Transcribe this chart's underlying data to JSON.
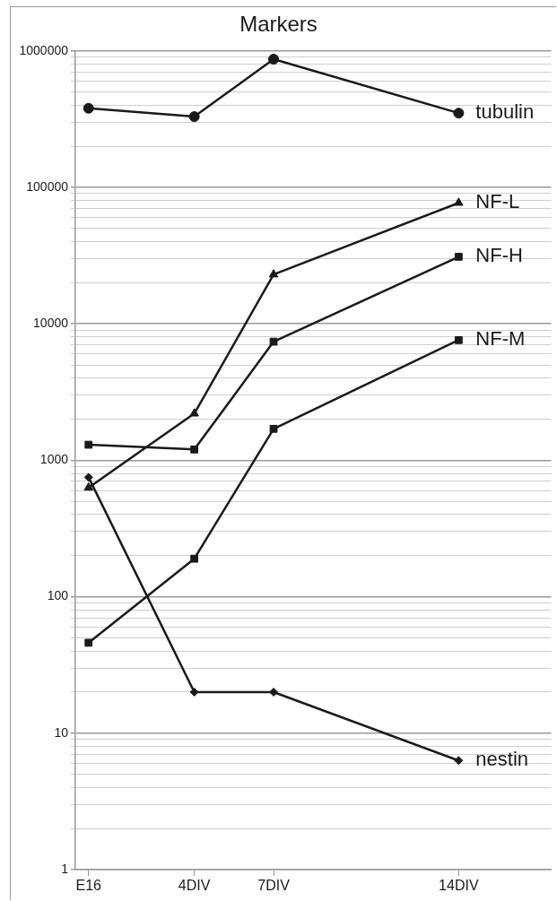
{
  "chart_data": {
    "type": "line",
    "title": "Markers",
    "log": "y",
    "grid": "y",
    "legend": false,
    "line_style": "solid",
    "x": [
      0,
      4,
      7,
      14
    ],
    "xlim": [
      -0.5,
      17.5
    ],
    "xticks": [
      {
        "value": 0,
        "label": "E16"
      },
      {
        "value": 4,
        "label": "4DIV"
      },
      {
        "value": 7,
        "label": "7DIV"
      },
      {
        "value": 14,
        "label": "14DIV"
      }
    ],
    "ylim": [
      1,
      1000000
    ],
    "yticks": [
      1,
      {
        "value": 2,
        "label": null
      },
      {
        "value": 3,
        "label": null
      },
      {
        "value": 4,
        "label": null
      },
      {
        "value": 5,
        "label": null
      },
      {
        "value": 6,
        "label": null
      },
      {
        "value": 7,
        "label": null
      },
      {
        "value": 8,
        "label": null
      },
      {
        "value": 9,
        "label": null
      },
      10,
      {
        "value": 20,
        "label": null
      },
      {
        "value": 30,
        "label": null
      },
      {
        "value": 40,
        "label": null
      },
      {
        "value": 50,
        "label": null
      },
      {
        "value": 60,
        "label": null
      },
      {
        "value": 70,
        "label": null
      },
      {
        "value": 80,
        "label": null
      },
      {
        "value": 90,
        "label": null
      },
      100,
      {
        "value": 200,
        "label": null
      },
      {
        "value": 300,
        "label": null
      },
      {
        "value": 400,
        "label": null
      },
      {
        "value": 500,
        "label": null
      },
      {
        "value": 600,
        "label": null
      },
      {
        "value": 700,
        "label": null
      },
      {
        "value": 800,
        "label": null
      },
      {
        "value": 900,
        "label": null
      },
      1000,
      {
        "value": 2000,
        "label": null
      },
      {
        "value": 3000,
        "label": null
      },
      {
        "value": 4000,
        "label": null
      },
      {
        "value": 5000,
        "label": null
      },
      {
        "value": 6000,
        "label": null
      },
      {
        "value": 7000,
        "label": null
      },
      {
        "value": 8000,
        "label": null
      },
      {
        "value": 9000,
        "label": null
      },
      10000,
      {
        "value": 20000,
        "label": null
      },
      {
        "value": 30000,
        "label": null
      },
      {
        "value": 40000,
        "label": null
      },
      {
        "value": 50000,
        "label": null
      },
      {
        "value": 60000,
        "label": null
      },
      {
        "value": 70000,
        "label": null
      },
      {
        "value": 80000,
        "label": null
      },
      {
        "value": 90000,
        "label": null
      },
      100000,
      {
        "value": 200000,
        "label": null
      },
      {
        "value": 300000,
        "label": null
      },
      {
        "value": 400000,
        "label": null
      },
      {
        "value": 500000,
        "label": null
      },
      {
        "value": 600000,
        "label": null
      },
      {
        "value": 700000,
        "label": null
      },
      {
        "value": 800000,
        "label": null
      },
      {
        "value": 900000,
        "label": null
      },
      1000000
    ],
    "series": [
      {
        "name": "tubulin",
        "color": "#1a1a1a",
        "marker": "circle",
        "values": [
          380000,
          330000,
          870000,
          350000
        ]
      },
      {
        "name": "NF-L",
        "color": "#1a1a1a",
        "marker": "triangle",
        "values": [
          630,
          2200,
          23000,
          77000
        ]
      },
      {
        "name": "NF-H",
        "color": "#1a1a1a",
        "marker": "square",
        "values": [
          1300,
          1200,
          7400,
          31000
        ]
      },
      {
        "name": "NF-M",
        "color": "#1a1a1a",
        "marker": "square",
        "values": [
          46,
          190,
          1700,
          7600
        ]
      },
      {
        "name": "nestin",
        "color": "#1a1a1a",
        "marker": "diamond",
        "values": [
          750,
          20,
          20,
          6.3
        ]
      }
    ]
  }
}
